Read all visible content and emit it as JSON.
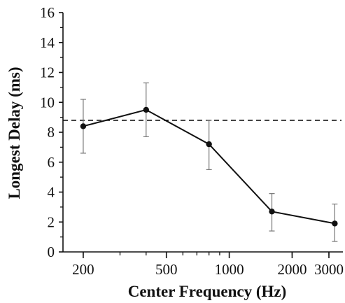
{
  "chart_data": {
    "type": "line",
    "title": "",
    "xlabel": "Center Frequency (Hz)",
    "ylabel": "Longest Delay (ms)",
    "x_scale": "log",
    "xlim": [
      160,
      3500
    ],
    "ylim": [
      0,
      16
    ],
    "x_ticks": [
      200,
      500,
      1000,
      2000,
      3000
    ],
    "x_tick_labels": [
      "200",
      "500",
      "1000",
      "2000",
      "3000"
    ],
    "y_ticks": [
      0,
      2,
      4,
      6,
      8,
      10,
      12,
      14,
      16
    ],
    "y_tick_labels": [
      "0",
      "2",
      "4",
      "6",
      "8",
      "10",
      "12",
      "14",
      "16"
    ],
    "grid": false,
    "series": [
      {
        "x": [
          200,
          400,
          800,
          1600,
          3200
        ],
        "y": [
          8.4,
          9.5,
          7.2,
          2.7,
          1.9
        ],
        "error_low": [
          6.6,
          7.7,
          5.5,
          1.4,
          0.7
        ],
        "error_high": [
          10.2,
          11.3,
          8.8,
          3.9,
          3.2
        ]
      }
    ],
    "reference_line": {
      "y": 8.8,
      "style": "dashed"
    }
  }
}
